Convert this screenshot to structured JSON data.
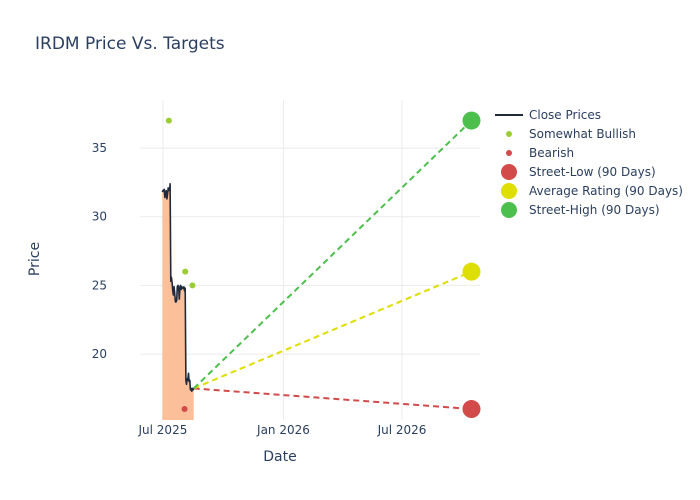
{
  "chart_data": {
    "type": "line",
    "title": "IRDM Price Vs. Targets",
    "xlabel": "Date",
    "ylabel": "Price",
    "xlim": [
      "2025-05-27",
      "2026-10-28"
    ],
    "ylim": [
      15.2,
      38.5
    ],
    "x_ticks": [
      {
        "date": "2025-07-01",
        "label": "Jul 2025"
      },
      {
        "date": "2026-01-01",
        "label": "Jan 2026"
      },
      {
        "date": "2026-07-01",
        "label": "Jul 2026"
      }
    ],
    "y_ticks": [
      20,
      25,
      30,
      35
    ],
    "grid": true,
    "legend_position": "right",
    "close_prices": {
      "name": "Close Prices",
      "color": "#1f2a3c",
      "fill_color": "#fbbf9a",
      "points": [
        [
          "2025-06-30",
          31.8
        ],
        [
          "2025-07-01",
          31.9
        ],
        [
          "2025-07-02",
          31.9
        ],
        [
          "2025-07-03",
          32.0
        ],
        [
          "2025-07-04",
          31.4
        ],
        [
          "2025-07-05",
          31.7
        ],
        [
          "2025-07-06",
          31.9
        ],
        [
          "2025-07-07",
          31.3
        ],
        [
          "2025-07-08",
          31.6
        ],
        [
          "2025-07-09",
          32.1
        ],
        [
          "2025-07-10",
          32.0
        ],
        [
          "2025-07-11",
          31.9
        ],
        [
          "2025-07-12",
          32.4
        ],
        [
          "2025-07-13",
          25.3
        ],
        [
          "2025-07-14",
          25.6
        ],
        [
          "2025-07-15",
          25.2
        ],
        [
          "2025-07-16",
          24.6
        ],
        [
          "2025-07-17",
          24.3
        ],
        [
          "2025-07-18",
          24.9
        ],
        [
          "2025-07-19",
          24.4
        ],
        [
          "2025-07-20",
          23.8
        ],
        [
          "2025-07-21",
          23.8
        ],
        [
          "2025-07-22",
          23.9
        ],
        [
          "2025-07-23",
          24.9
        ],
        [
          "2025-07-24",
          25.0
        ],
        [
          "2025-07-25",
          24.8
        ],
        [
          "2025-07-26",
          24.0
        ],
        [
          "2025-07-27",
          24.9
        ],
        [
          "2025-07-28",
          25.0
        ],
        [
          "2025-07-29",
          24.7
        ],
        [
          "2025-07-30",
          24.9
        ],
        [
          "2025-07-31",
          24.8
        ],
        [
          "2025-08-01",
          24.8
        ],
        [
          "2025-08-02",
          24.9
        ],
        [
          "2025-08-03",
          24.6
        ],
        [
          "2025-08-04",
          24.8
        ],
        [
          "2025-08-05",
          18.1
        ],
        [
          "2025-08-06",
          17.8
        ],
        [
          "2025-08-07",
          18.2
        ],
        [
          "2025-08-08",
          18.1
        ],
        [
          "2025-08-09",
          18.6
        ],
        [
          "2025-08-10",
          18.0
        ],
        [
          "2025-08-11",
          18.1
        ],
        [
          "2025-08-12",
          17.4
        ],
        [
          "2025-08-13",
          17.5
        ],
        [
          "2025-08-14",
          17.3
        ],
        [
          "2025-08-15",
          17.5
        ],
        [
          "2025-08-16",
          17.4
        ],
        [
          "2025-08-17",
          17.5
        ]
      ]
    },
    "ratings": [
      {
        "name": "Somewhat Bullish",
        "color": "#9acd32",
        "points": [
          [
            "2025-07-10",
            37.0
          ],
          [
            "2025-08-04",
            26.0
          ],
          [
            "2025-08-15",
            25.0
          ]
        ]
      },
      {
        "name": "Bearish",
        "color": "#d24a4a",
        "points": [
          [
            "2025-08-03",
            16.0
          ]
        ]
      }
    ],
    "targets": {
      "start": [
        "2025-08-17",
        17.5
      ],
      "date": "2026-10-15",
      "series": [
        {
          "name": "Street-Low (90 Days)",
          "color": "#d24a4a",
          "value": 16.0
        },
        {
          "name": "Average Rating (90 Days)",
          "color": "#dede00",
          "value": 26.0
        },
        {
          "name": "Street-High (90 Days)",
          "color": "#4cbf4c",
          "value": 37.0
        }
      ]
    }
  }
}
